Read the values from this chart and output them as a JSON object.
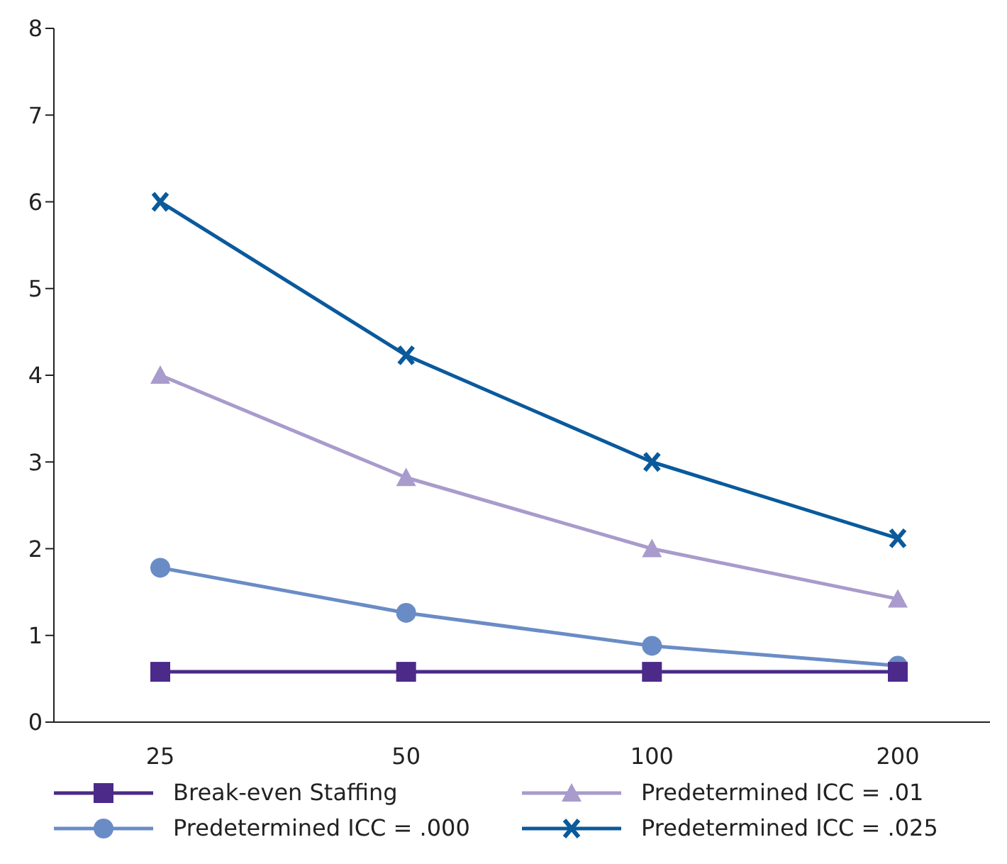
{
  "chart_data": {
    "type": "line",
    "categories": [
      "25",
      "50",
      "100",
      "200"
    ],
    "ylim": [
      0,
      8
    ],
    "yticks": [
      0,
      1,
      2,
      3,
      4,
      5,
      6,
      7,
      8
    ],
    "grid": false,
    "legend": "bottom",
    "line_style": "solid",
    "series": [
      {
        "name": "Break-even Staffing",
        "color": "#4b2a8a",
        "marker": "square",
        "values": [
          0.58,
          0.58,
          0.58,
          0.58
        ]
      },
      {
        "name": "Predetermined ICC = .01",
        "color": "#a99bcc",
        "marker": "triangle",
        "values": [
          4.0,
          2.82,
          2.0,
          1.42
        ]
      },
      {
        "name": "Predetermined ICC = .000",
        "color": "#6a8cc6",
        "marker": "circle",
        "values": [
          1.78,
          1.26,
          0.88,
          0.65
        ]
      },
      {
        "name": "Predetermined ICC = .025",
        "color": "#0a5a9c",
        "marker": "cross",
        "values": [
          6.0,
          4.23,
          3.0,
          2.12
        ]
      }
    ]
  }
}
